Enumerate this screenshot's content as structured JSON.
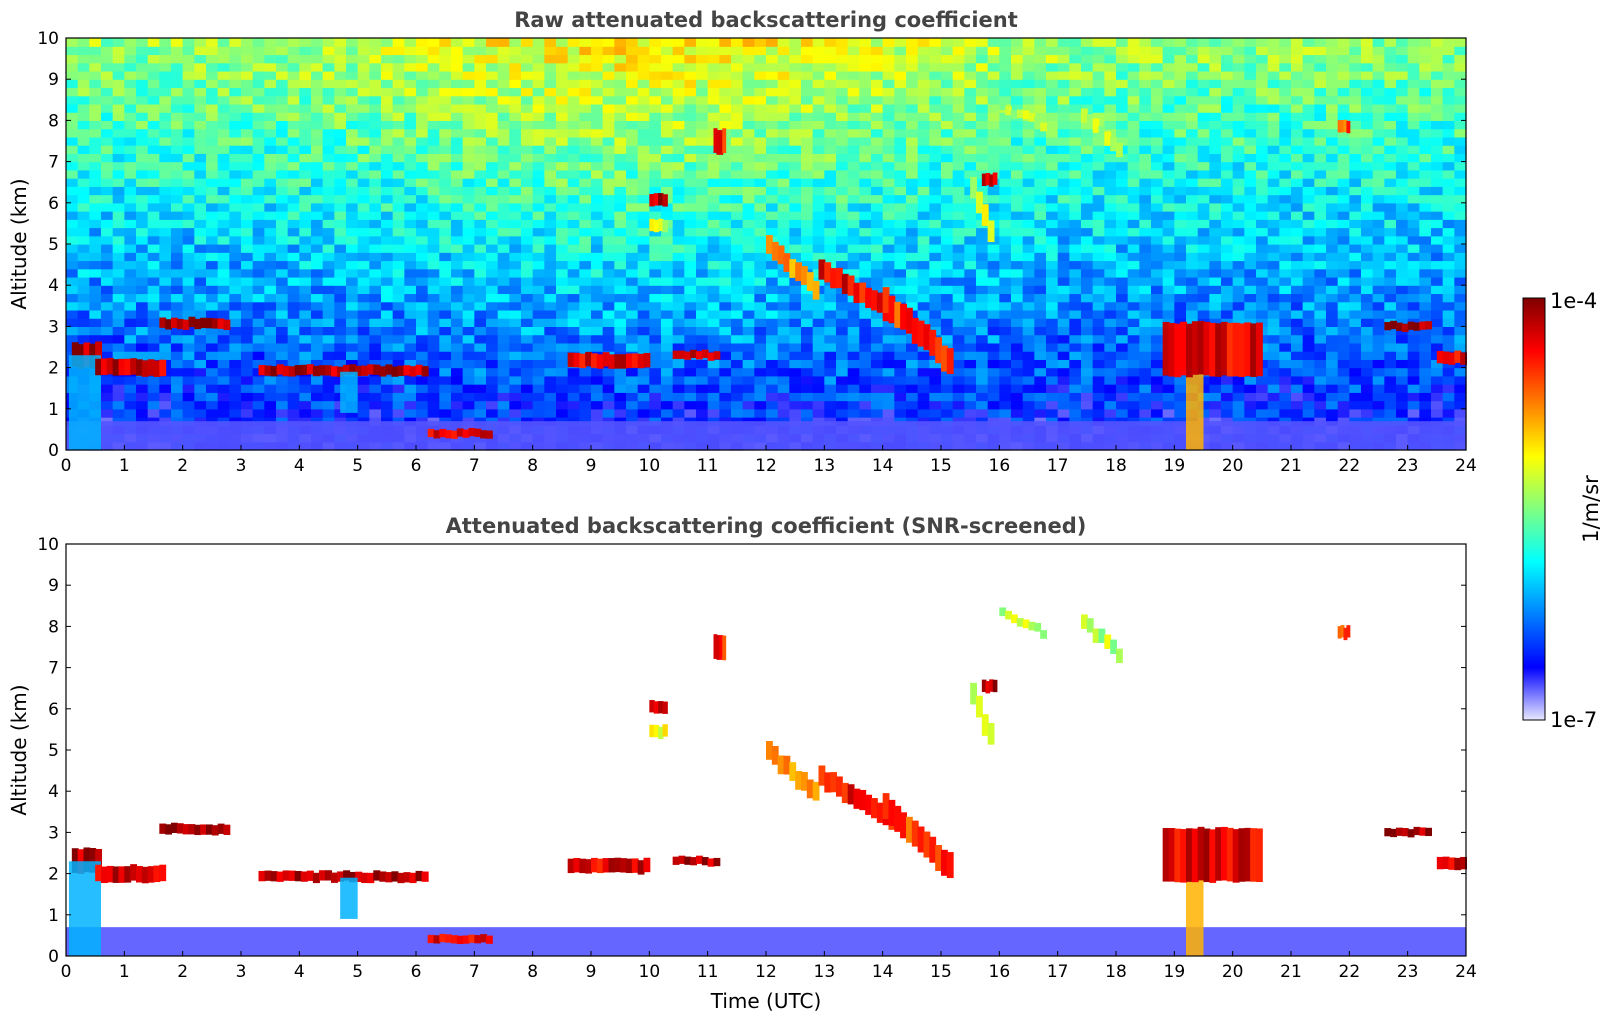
{
  "chart_data": [
    {
      "type": "heatmap",
      "title": "Raw attenuated backscattering coefficient",
      "xlabel": "",
      "ylabel": "Altitude (km)",
      "xlim": [
        0,
        24
      ],
      "ylim": [
        0,
        10
      ],
      "xticks": [
        "0",
        "1",
        "2",
        "3",
        "4",
        "5",
        "6",
        "7",
        "8",
        "9",
        "10",
        "11",
        "12",
        "13",
        "14",
        "15",
        "16",
        "17",
        "18",
        "19",
        "20",
        "21",
        "22",
        "23",
        "24"
      ],
      "yticks": [
        "0",
        "1",
        "2",
        "3",
        "4",
        "5",
        "6",
        "7",
        "8",
        "9",
        "10"
      ],
      "background_noise": true,
      "features": [
        {
          "kind": "boundary_layer",
          "t0": 0,
          "t1": 24,
          "h0": 0,
          "h1": 0.7,
          "level": 0.08
        },
        {
          "kind": "layer",
          "t0": 0.1,
          "t1": 0.6,
          "h0": 2.0,
          "h1": 2.6,
          "level": 0.95
        },
        {
          "kind": "precip",
          "t0": 0.05,
          "t1": 0.6,
          "h0": 0,
          "h1": 2.3,
          "level": 0.3
        },
        {
          "kind": "layer",
          "t0": 0.5,
          "t1": 1.7,
          "h0": 1.8,
          "h1": 2.2,
          "level": 0.92
        },
        {
          "kind": "layer",
          "t0": 1.6,
          "t1": 2.8,
          "h0": 2.95,
          "h1": 3.2,
          "level": 0.95
        },
        {
          "kind": "layer",
          "t0": 3.3,
          "t1": 6.2,
          "h0": 1.8,
          "h1": 2.05,
          "level": 0.95
        },
        {
          "kind": "precip",
          "t0": 4.7,
          "t1": 5.0,
          "h0": 0.9,
          "h1": 1.9,
          "level": 0.3
        },
        {
          "kind": "layer",
          "t0": 6.2,
          "t1": 7.3,
          "h0": 0.3,
          "h1": 0.5,
          "level": 0.9
        },
        {
          "kind": "layer",
          "t0": 8.6,
          "t1": 10.0,
          "h0": 2.0,
          "h1": 2.35,
          "level": 0.9
        },
        {
          "kind": "layer",
          "t0": 10.0,
          "t1": 10.3,
          "h0": 5.9,
          "h1": 6.2,
          "level": 0.95
        },
        {
          "kind": "layer",
          "t0": 10.0,
          "t1": 10.3,
          "h0": 5.3,
          "h1": 5.6,
          "level": 0.6
        },
        {
          "kind": "layer",
          "t0": 10.4,
          "t1": 11.2,
          "h0": 2.2,
          "h1": 2.4,
          "level": 0.95
        },
        {
          "kind": "layer",
          "t0": 11.1,
          "t1": 11.3,
          "h0": 7.2,
          "h1": 7.8,
          "level": 0.85
        },
        {
          "kind": "cirrus",
          "t0": 12.0,
          "t1": 12.9,
          "h0": 3.8,
          "h1": 5.1,
          "level": 0.75
        },
        {
          "kind": "cirrus",
          "t0": 12.9,
          "t1": 14.4,
          "h0": 3.1,
          "h1": 4.5,
          "level": 0.88
        },
        {
          "kind": "cirrus",
          "t0": 14.0,
          "t1": 15.2,
          "h0": 2.0,
          "h1": 3.8,
          "level": 0.82
        },
        {
          "kind": "cirrus",
          "t0": 15.5,
          "t1": 15.9,
          "h0": 5.0,
          "h1": 6.5,
          "level": 0.6
        },
        {
          "kind": "layer",
          "t0": 15.7,
          "t1": 15.95,
          "h0": 6.4,
          "h1": 6.7,
          "level": 0.95
        },
        {
          "kind": "cirrus",
          "t0": 16.0,
          "t1": 16.8,
          "h0": 7.8,
          "h1": 8.4,
          "level": 0.55
        },
        {
          "kind": "cirrus",
          "t0": 17.4,
          "t1": 18.1,
          "h0": 7.2,
          "h1": 8.2,
          "level": 0.55
        },
        {
          "kind": "precip",
          "t0": 19.2,
          "t1": 19.5,
          "h0": 0,
          "h1": 3.0,
          "level": 0.7
        },
        {
          "kind": "layer",
          "t0": 18.8,
          "t1": 20.5,
          "h0": 1.8,
          "h1": 3.1,
          "level": 0.9
        },
        {
          "kind": "layer",
          "t0": 21.8,
          "t1": 22.0,
          "h0": 7.7,
          "h1": 8.0,
          "level": 0.8
        },
        {
          "kind": "layer",
          "t0": 22.6,
          "t1": 23.4,
          "h0": 2.9,
          "h1": 3.1,
          "level": 0.95
        },
        {
          "kind": "layer",
          "t0": 23.5,
          "t1": 24.0,
          "h0": 2.1,
          "h1": 2.4,
          "level": 0.9
        }
      ]
    },
    {
      "type": "heatmap",
      "title": "Attenuated backscattering coefficient (SNR-screened)",
      "xlabel": "Time (UTC)",
      "ylabel": "Altitude (km)",
      "xlim": [
        0,
        24
      ],
      "ylim": [
        0,
        10
      ],
      "xticks": [
        "0",
        "1",
        "2",
        "3",
        "4",
        "5",
        "6",
        "7",
        "8",
        "9",
        "10",
        "11",
        "12",
        "13",
        "14",
        "15",
        "16",
        "17",
        "18",
        "19",
        "20",
        "21",
        "22",
        "23",
        "24"
      ],
      "yticks": [
        "0",
        "1",
        "2",
        "3",
        "4",
        "5",
        "6",
        "7",
        "8",
        "9",
        "10"
      ],
      "background_noise": false,
      "same_features_as_panel": 0
    }
  ],
  "colorbar": {
    "label": "1/m/sr",
    "max_label": "1e-4",
    "min_label": "1e-7",
    "scale": "log",
    "range": [
      1e-07,
      0.0001
    ],
    "colormap": "jet",
    "colors": [
      "#e8e8ff",
      "#0000ff",
      "#0080ff",
      "#00ffff",
      "#80ff80",
      "#ffff00",
      "#ff8000",
      "#ff0000",
      "#800000"
    ]
  }
}
